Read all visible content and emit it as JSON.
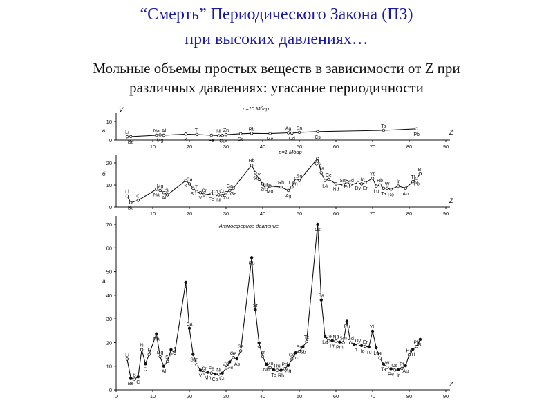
{
  "title_line1": "“Смерть” Периодического Закона (ПЗ)",
  "title_line2": "при высоких давлениях…",
  "subtitle_line1": "Мольные объемы простых веществ в зависимости от Z при",
  "subtitle_line2": "различных давлениях: угасание периодичности",
  "colors": {
    "title": "#1b1b9e",
    "ink": "#111111"
  },
  "chart_data": [
    {
      "type": "line",
      "panel_letter": "в",
      "annotation": "p=10 Мбар",
      "xlabel": "Z",
      "ylabel": "V",
      "xlim": [
        0,
        90
      ],
      "ylim": [
        0,
        10
      ],
      "xticks": [
        10,
        20,
        30,
        40,
        50,
        60,
        70,
        80,
        90
      ],
      "yticks": [
        0,
        10
      ],
      "points": [
        {
          "el": "Li",
          "z": 3,
          "v": 1.8
        },
        {
          "el": "Be",
          "z": 4,
          "v": 1.9
        },
        {
          "el": "Na",
          "z": 11,
          "v": 2.6
        },
        {
          "el": "Mg",
          "z": 12,
          "v": 2.8
        },
        {
          "el": "Al",
          "z": 13,
          "v": 2.6
        },
        {
          "el": "K",
          "z": 19,
          "v": 3.2
        },
        {
          "el": "Ti",
          "z": 22,
          "v": 3.0
        },
        {
          "el": "Fe",
          "z": 26,
          "v": 2.6
        },
        {
          "el": "Ni",
          "z": 28,
          "v": 2.4
        },
        {
          "el": "Cu",
          "z": 29,
          "v": 2.5
        },
        {
          "el": "Zn",
          "z": 30,
          "v": 2.9
        },
        {
          "el": "Se",
          "z": 34,
          "v": 3.4
        },
        {
          "el": "Rb",
          "z": 37,
          "v": 3.6
        },
        {
          "el": "Me",
          "z": 42,
          "v": 3.5
        },
        {
          "el": "Cd",
          "z": 48,
          "v": 3.7
        },
        {
          "el": "Ag",
          "z": 47,
          "v": 3.9
        },
        {
          "el": "Sn",
          "z": 50,
          "v": 4.1
        },
        {
          "el": "Cs",
          "z": 55,
          "v": 4.5
        },
        {
          "el": "Ta",
          "z": 73,
          "v": 5.2
        },
        {
          "el": "Pb",
          "z": 82,
          "v": 6.0
        }
      ]
    },
    {
      "type": "line",
      "panel_letter": "б",
      "annotation": "p=1 Мбар",
      "xlabel": "Z",
      "ylabel": "",
      "xlim": [
        0,
        90
      ],
      "ylim": [
        0,
        20
      ],
      "xticks": [
        10,
        20,
        30,
        40,
        50,
        60,
        70,
        80,
        90
      ],
      "yticks": [
        0,
        10,
        20
      ],
      "points": [
        {
          "el": "Li",
          "z": 3,
          "v": 5.0
        },
        {
          "el": "Be",
          "z": 4,
          "v": 2.0
        },
        {
          "el": "C",
          "z": 6,
          "v": 3.0
        },
        {
          "el": "Na",
          "z": 11,
          "v": 8.0
        },
        {
          "el": "Mg",
          "z": 12,
          "v": 7.5
        },
        {
          "el": "Al",
          "z": 13,
          "v": 6.5
        },
        {
          "el": "Si",
          "z": 14,
          "v": 5.5
        },
        {
          "el": "K",
          "z": 19,
          "v": 12.0
        },
        {
          "el": "Ca",
          "z": 20,
          "v": 10.5
        },
        {
          "el": "Sc",
          "z": 21,
          "v": 8.5
        },
        {
          "el": "Ti",
          "z": 22,
          "v": 7.0
        },
        {
          "el": "V",
          "z": 23,
          "v": 6.5
        },
        {
          "el": "Cr",
          "z": 24,
          "v": 5.5
        },
        {
          "el": "Fe",
          "z": 26,
          "v": 6.0
        },
        {
          "el": "Co",
          "z": 27,
          "v": 5.0
        },
        {
          "el": "Ni",
          "z": 28,
          "v": 5.5
        },
        {
          "el": "Cu",
          "z": 29,
          "v": 5.2
        },
        {
          "el": "Ga",
          "z": 31,
          "v": 7.5
        },
        {
          "el": "Zn",
          "z": 30,
          "v": 6.5
        },
        {
          "el": "Ge",
          "z": 32,
          "v": 8.5
        },
        {
          "el": "Rb",
          "z": 37,
          "v": 19.0
        },
        {
          "el": "Sr",
          "z": 38,
          "v": 15.5
        },
        {
          "el": "Y",
          "z": 39,
          "v": 12.5
        },
        {
          "el": "Zr",
          "z": 40,
          "v": 10.5
        },
        {
          "el": "Nb",
          "z": 41,
          "v": 8.0
        },
        {
          "el": "Mo",
          "z": 42,
          "v": 9.5
        },
        {
          "el": "Rh",
          "z": 45,
          "v": 9.0
        },
        {
          "el": "Ag",
          "z": 47,
          "v": 7.5
        },
        {
          "el": "Cd",
          "z": 48,
          "v": 9.0
        },
        {
          "el": "In",
          "z": 49,
          "v": 13.0
        },
        {
          "el": "Sn",
          "z": 50,
          "v": 12.0
        },
        {
          "el": "Cs",
          "z": 55,
          "v": 22.0
        },
        {
          "el": "Ba",
          "z": 56,
          "v": 15.5
        },
        {
          "el": "La",
          "z": 57,
          "v": 12.0
        },
        {
          "el": "Ce",
          "z": 58,
          "v": 12.5
        },
        {
          "el": "Nd",
          "z": 60,
          "v": 10.5
        },
        {
          "el": "Sm",
          "z": 62,
          "v": 10.0
        },
        {
          "el": "Eu",
          "z": 63,
          "v": 11.5
        },
        {
          "el": "Gd",
          "z": 64,
          "v": 10.0
        },
        {
          "el": "Dy",
          "z": 66,
          "v": 11.0
        },
        {
          "el": "Ho",
          "z": 67,
          "v": 10.5
        },
        {
          "el": "Er",
          "z": 68,
          "v": 11.0
        },
        {
          "el": "Yb",
          "z": 70,
          "v": 13.0
        },
        {
          "el": "Lu",
          "z": 71,
          "v": 9.5
        },
        {
          "el": "Hb",
          "z": 72,
          "v": 10.0
        },
        {
          "el": "Ta",
          "z": 73,
          "v": 8.5
        },
        {
          "el": "W",
          "z": 74,
          "v": 8.5
        },
        {
          "el": "Re",
          "z": 75,
          "v": 8.0
        },
        {
          "el": "Ir",
          "z": 77,
          "v": 9.5
        },
        {
          "el": "Tl",
          "z": 81,
          "v": 11.5
        },
        {
          "el": "Au",
          "z": 79,
          "v": 8.5
        },
        {
          "el": "Pb",
          "z": 82,
          "v": 13.0
        },
        {
          "el": "Bi",
          "z": 83,
          "v": 15.0
        }
      ]
    },
    {
      "type": "line",
      "panel_letter": "а",
      "annotation": "Атмосферное давление",
      "xlabel": "Z",
      "ylabel": "",
      "xlim": [
        0,
        90
      ],
      "ylim": [
        0,
        70
      ],
      "xticks": [
        0,
        10,
        20,
        30,
        40,
        50,
        60,
        70,
        80,
        90
      ],
      "yticks": [
        0,
        10,
        20,
        30,
        40,
        50,
        60,
        70
      ],
      "points": [
        {
          "el": "Li",
          "z": 3,
          "v": 13
        },
        {
          "el": "Be",
          "z": 4,
          "v": 5
        },
        {
          "el": "B",
          "z": 5,
          "v": 4.5
        },
        {
          "el": "C",
          "z": 6,
          "v": 5.5
        },
        {
          "el": "N",
          "z": 7,
          "v": 17
        },
        {
          "el": "O",
          "z": 8,
          "v": 11
        },
        {
          "el": "F",
          "z": 9,
          "v": 15
        },
        {
          "el": "Na",
          "z": 11,
          "v": 23.7
        },
        {
          "el": "Mg",
          "z": 12,
          "v": 14
        },
        {
          "el": "Al",
          "z": 13,
          "v": 10
        },
        {
          "el": "Si",
          "z": 14,
          "v": 12
        },
        {
          "el": "P",
          "z": 15,
          "v": 17
        },
        {
          "el": "S",
          "z": 16,
          "v": 15.5
        },
        {
          "el": "K",
          "z": 19,
          "v": 45.5
        },
        {
          "el": "Ca",
          "z": 20,
          "v": 26
        },
        {
          "el": "Sc",
          "z": 21,
          "v": 15
        },
        {
          "el": "Ti",
          "z": 22,
          "v": 10.6
        },
        {
          "el": "V",
          "z": 23,
          "v": 8.3
        },
        {
          "el": "Cr",
          "z": 24,
          "v": 7.2
        },
        {
          "el": "Mn",
          "z": 25,
          "v": 7.4
        },
        {
          "el": "Fe",
          "z": 26,
          "v": 7.1
        },
        {
          "el": "Co",
          "z": 27,
          "v": 6.7
        },
        {
          "el": "Ni",
          "z": 28,
          "v": 6.6
        },
        {
          "el": "Cu",
          "z": 29,
          "v": 7.1
        },
        {
          "el": "Zn",
          "z": 30,
          "v": 9.2
        },
        {
          "el": "Ga",
          "z": 31,
          "v": 11.8
        },
        {
          "el": "Ge",
          "z": 32,
          "v": 13.6
        },
        {
          "el": "As",
          "z": 33,
          "v": 13.1
        },
        {
          "el": "Se",
          "z": 34,
          "v": 16.5
        },
        {
          "el": "Rb",
          "z": 37,
          "v": 55.9
        },
        {
          "el": "Sr",
          "z": 38,
          "v": 33.9
        },
        {
          "el": "Y",
          "z": 39,
          "v": 19.9
        },
        {
          "el": "Zr",
          "z": 40,
          "v": 14
        },
        {
          "el": "Nb",
          "z": 41,
          "v": 10.8
        },
        {
          "el": "Mo",
          "z": 42,
          "v": 9.4
        },
        {
          "el": "Tc",
          "z": 43,
          "v": 8.5
        },
        {
          "el": "Ru",
          "z": 44,
          "v": 8.3
        },
        {
          "el": "Rh",
          "z": 45,
          "v": 8.3
        },
        {
          "el": "Pd",
          "z": 46,
          "v": 8.9
        },
        {
          "el": "Ag",
          "z": 47,
          "v": 10.3
        },
        {
          "el": "Cd",
          "z": 48,
          "v": 13
        },
        {
          "el": "In",
          "z": 49,
          "v": 15.7
        },
        {
          "el": "Sn",
          "z": 50,
          "v": 16.3
        },
        {
          "el": "Sb",
          "z": 51,
          "v": 18.2
        },
        {
          "el": "Te",
          "z": 52,
          "v": 20.4
        },
        {
          "el": "Cs",
          "z": 55,
          "v": 70
        },
        {
          "el": "Ba",
          "z": 56,
          "v": 38
        },
        {
          "el": "La",
          "z": 57,
          "v": 22.5
        },
        {
          "el": "Ce",
          "z": 58,
          "v": 20.7
        },
        {
          "el": "Pr",
          "z": 59,
          "v": 20.8
        },
        {
          "el": "Nd",
          "z": 60,
          "v": 20.6
        },
        {
          "el": "Pm",
          "z": 61,
          "v": 20.2
        },
        {
          "el": "Sm",
          "z": 62,
          "v": 20
        },
        {
          "el": "Eu",
          "z": 63,
          "v": 29
        },
        {
          "el": "Gd",
          "z": 64,
          "v": 19.9
        },
        {
          "el": "Tb",
          "z": 65,
          "v": 19.2
        },
        {
          "el": "Dy",
          "z": 66,
          "v": 19
        },
        {
          "el": "Ho",
          "z": 67,
          "v": 18.7
        },
        {
          "el": "Er",
          "z": 68,
          "v": 18.4
        },
        {
          "el": "Tu",
          "z": 69,
          "v": 18.1
        },
        {
          "el": "Yb",
          "z": 70,
          "v": 24.8
        },
        {
          "el": "Lu",
          "z": 71,
          "v": 17.8
        },
        {
          "el": "Hf",
          "z": 72,
          "v": 13.4
        },
        {
          "el": "Ta",
          "z": 73,
          "v": 10.9
        },
        {
          "el": "W",
          "z": 74,
          "v": 9.5
        },
        {
          "el": "Re",
          "z": 75,
          "v": 8.9
        },
        {
          "el": "Os",
          "z": 76,
          "v": 8.4
        },
        {
          "el": "Ir",
          "z": 77,
          "v": 8.5
        },
        {
          "el": "Pt",
          "z": 78,
          "v": 9.1
        },
        {
          "el": "Au",
          "z": 79,
          "v": 10.2
        },
        {
          "el": "Hg",
          "z": 80,
          "v": 14.8
        },
        {
          "el": "Tl",
          "z": 81,
          "v": 17.2
        },
        {
          "el": "Pb",
          "z": 82,
          "v": 18.3
        },
        {
          "el": "Bi",
          "z": 83,
          "v": 21.3
        }
      ]
    }
  ]
}
